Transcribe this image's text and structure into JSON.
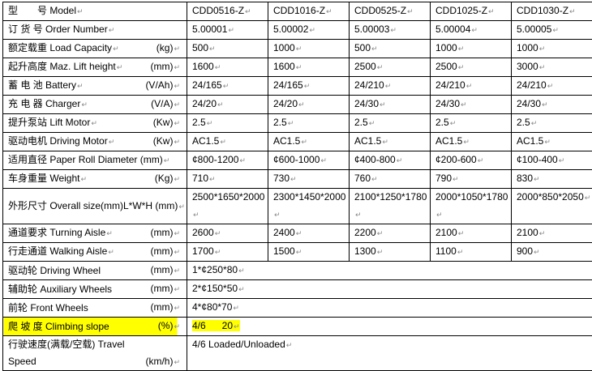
{
  "models": [
    "CDD0516-Z",
    "CDD1016-Z",
    "CDD0525-Z",
    "CDD1025-Z",
    "CDD1030-Z"
  ],
  "rows": [
    {
      "label": "型　　号 Model",
      "unit": "",
      "values": [
        "CDD0516-Z",
        "CDD1016-Z",
        "CDD0525-Z",
        "CDD1025-Z",
        "CDD1030-Z"
      ]
    },
    {
      "label": "订 货 号 Order Number",
      "unit": "",
      "values": [
        "5.00001",
        "5.00002",
        "5.00003",
        "5.00004",
        "5.00005"
      ]
    },
    {
      "label": "额定载重  Load Capacity",
      "unit": "(kg)",
      "values": [
        "500",
        "1000",
        "500",
        "1000",
        "1000"
      ]
    },
    {
      "label": "起升高度 Maz. Lift height",
      "unit": "(mm)",
      "values": [
        "1600",
        "1600",
        "2500",
        "2500",
        "3000"
      ]
    },
    {
      "label": "蓄 电 池  Battery",
      "unit": "(V/Ah)",
      "values": [
        "24/165",
        "24/165",
        "24/210",
        "24/210",
        "24/210"
      ]
    },
    {
      "label": "充 电 器  Charger",
      "unit": "(V/A)",
      "values": [
        "24/20",
        "24/20",
        "24/30",
        "24/30",
        "24/30"
      ]
    },
    {
      "label": "提升泵站 Lift Motor",
      "unit": "(Kw)",
      "values": [
        "2.5",
        "2.5",
        "2.5",
        "2.5",
        "2.5"
      ]
    },
    {
      "label": "驱动电机 Driving Motor",
      "unit": "(Kw)",
      "values": [
        "AC1.5",
        "AC1.5",
        "AC1.5",
        "AC1.5",
        "AC1.5"
      ]
    },
    {
      "label": "适用直径 Paper Roll Diameter (mm)",
      "unit": "",
      "values": [
        "¢800-1200",
        "¢600-1000",
        "¢400-800",
        "¢200-600",
        "¢100-400"
      ]
    },
    {
      "label": "车身重量 Weight",
      "unit": "(Kg)",
      "values": [
        "710",
        "730",
        "760",
        "790",
        "830"
      ]
    },
    {
      "label": "外形尺寸 Overall size(mm)L*W*H (mm)",
      "unit": "",
      "values": [
        "2500*1650*2000",
        "2300*1450*2000",
        "2100*1250*1780",
        "2000*1050*1780",
        "2000*850*2050"
      ]
    },
    {
      "label": "通道要求  Turning Aisle",
      "unit": "(mm)",
      "values": [
        "2600",
        "2400",
        "2200",
        "2100",
        "2100"
      ]
    },
    {
      "label": "行走通道 Walking Aisle",
      "unit": "(mm)",
      "values": [
        "1700",
        "1500",
        "1300",
        "1100",
        "900"
      ]
    }
  ],
  "shared_rows": [
    {
      "label": "驱动轮  Driving Wheel",
      "unit": "(mm)",
      "value": "1*¢250*80"
    },
    {
      "label": "辅助轮  Auxiliary Wheels",
      "unit": "(mm)",
      "value": "2*¢150*50"
    },
    {
      "label": "前轮 Front Wheels",
      "unit": "(mm)",
      "value": "4*¢80*70"
    },
    {
      "label": "爬 坡 度  Climbing slope",
      "unit": "(%)",
      "value": "4/6      20",
      "highlight_color": "#ffff00"
    },
    {
      "label": "行驶速度(满载/空载) Travel",
      "label2": "Speed",
      "unit": "(km/h)",
      "value": "4/6 Loaded/Unloaded"
    }
  ]
}
